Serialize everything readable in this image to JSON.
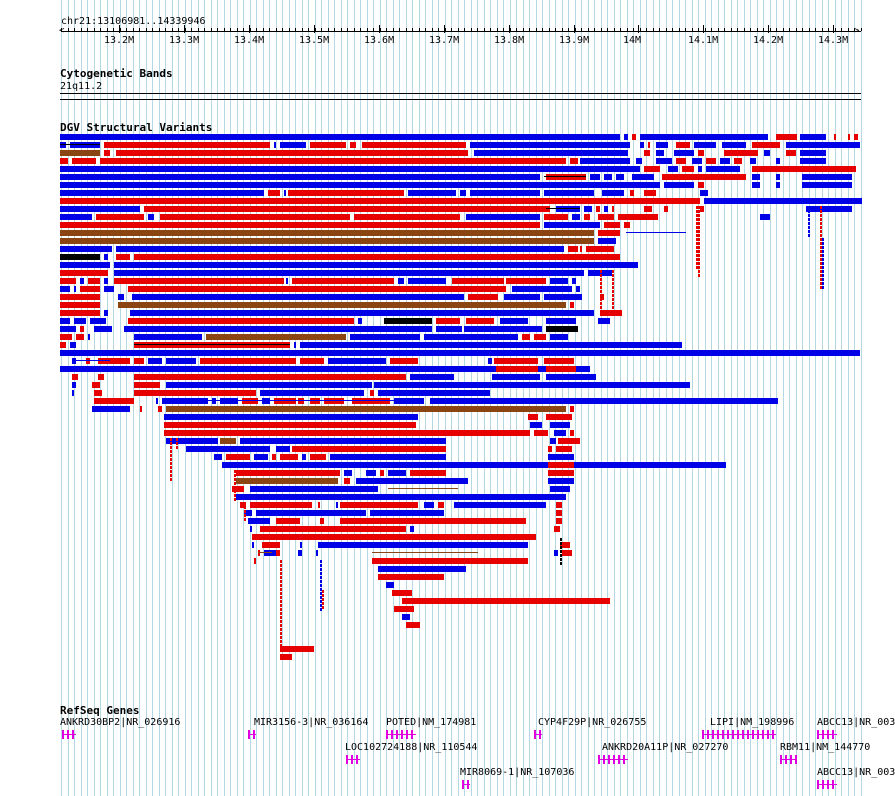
{
  "ruler": {
    "locus": "chr21:13106981..14339946",
    "ticks": [
      "13.2M",
      "13.3M",
      "13.4M",
      "13.5M",
      "13.6M",
      "13.7M",
      "13.8M",
      "13.9M",
      "14M",
      "14.1M",
      "14.2M",
      "14.3M"
    ]
  },
  "tracks": {
    "cytoband_title": "Cytogenetic Bands",
    "cytoband_value": "21q11.2",
    "dgv_title": "DGV Structural Variants",
    "refseq_title": "RefSeq Genes"
  },
  "colors": {
    "loss": "#0000e6",
    "gain": "#e60000",
    "both": "#8b4513",
    "inversion": "#000000",
    "gene": "#e000e0",
    "grid": "#b4d8e4"
  },
  "genes": [
    {
      "label": "ANKRD30BP2|NR_026916"
    },
    {
      "label": "MIR3156-3|NR_036164"
    },
    {
      "label": "POTED|NM_174981"
    },
    {
      "label": "CYP4F29P|NR_026755"
    },
    {
      "label": "LIPI|NM_198996"
    },
    {
      "label": "ABCC13|NR_003"
    },
    {
      "label": "LOC102724188|NR_110544"
    },
    {
      "label": "ANKRD20A11P|NR_027270"
    },
    {
      "label": "RBM11|NM_144770"
    },
    {
      "label": "MIR8069-1|NR_107036"
    },
    {
      "label": "ABCC13|NR_003"
    }
  ]
}
